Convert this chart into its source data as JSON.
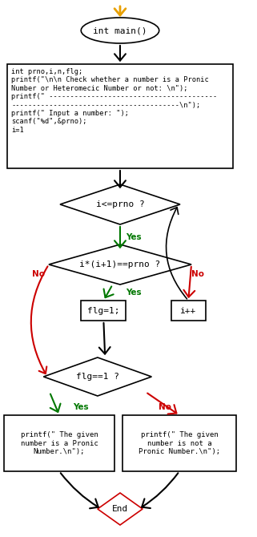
{
  "bg_color": "#ffffff",
  "orange": "#e8a000",
  "green": "#007700",
  "red": "#cc0000",
  "black": "#000000",
  "start_text": "int main()",
  "code_lines": "int prno,i,n,flg;\nprintf(\"\\n\\n Check whether a number is a Pronic\nNumber or Heteromecic Number or not: \\n\");\nprintf(\" ----------------------------------------\n----------------------------------------\\n\");\nprintf(\" Input a number: \");\nscanf(\"%d\",&prno);\ni=1",
  "d1_text": "i<=prno ?",
  "d2_text": "i*(i+1)==prno ?",
  "flg_text": "flg=1;",
  "inc_text": "i++",
  "d3_text": "flg==1 ?",
  "yes_box_text": "printf(\" The given\nnumber is a Pronic\nNumber.\\n\");",
  "no_box_text": "printf(\" The given\nnumber is not a\nPronic Number.\\n\");",
  "end_text": "End",
  "figw": 3.21,
  "figh": 6.7,
  "dpi": 100
}
